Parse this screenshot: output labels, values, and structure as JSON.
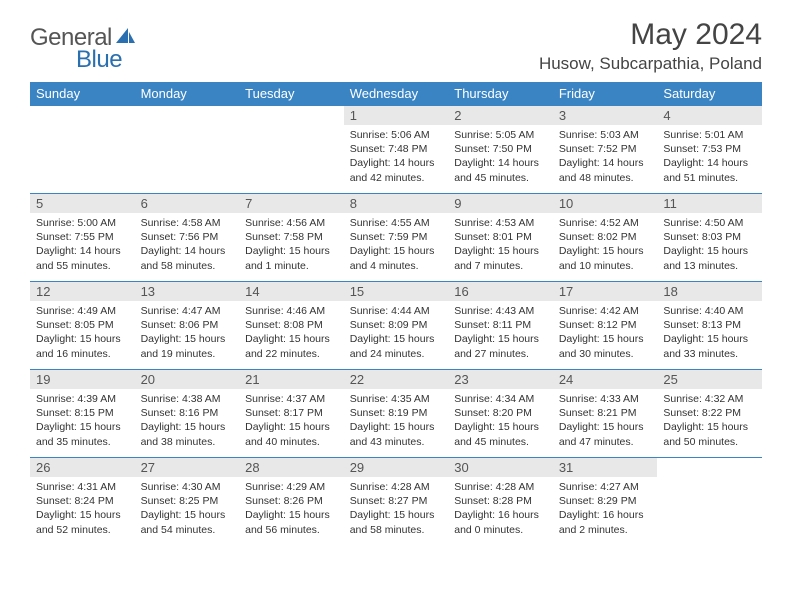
{
  "logo": {
    "part1": "General",
    "part2": "Blue"
  },
  "title": "May 2024",
  "location": "Husow, Subcarpathia, Poland",
  "colors": {
    "header_bg": "#3a84c4",
    "header_fg": "#ffffff",
    "daynum_bg": "#e8e8e8",
    "border": "#3a84c4",
    "logo_gray": "#555555",
    "logo_blue": "#2a6fb0"
  },
  "day_headers": [
    "Sunday",
    "Monday",
    "Tuesday",
    "Wednesday",
    "Thursday",
    "Friday",
    "Saturday"
  ],
  "weeks": [
    [
      {
        "empty": true
      },
      {
        "empty": true
      },
      {
        "empty": true
      },
      {
        "n": "1",
        "sr": "5:06 AM",
        "ss": "7:48 PM",
        "dl": "14 hours and 42 minutes."
      },
      {
        "n": "2",
        "sr": "5:05 AM",
        "ss": "7:50 PM",
        "dl": "14 hours and 45 minutes."
      },
      {
        "n": "3",
        "sr": "5:03 AM",
        "ss": "7:52 PM",
        "dl": "14 hours and 48 minutes."
      },
      {
        "n": "4",
        "sr": "5:01 AM",
        "ss": "7:53 PM",
        "dl": "14 hours and 51 minutes."
      }
    ],
    [
      {
        "n": "5",
        "sr": "5:00 AM",
        "ss": "7:55 PM",
        "dl": "14 hours and 55 minutes."
      },
      {
        "n": "6",
        "sr": "4:58 AM",
        "ss": "7:56 PM",
        "dl": "14 hours and 58 minutes."
      },
      {
        "n": "7",
        "sr": "4:56 AM",
        "ss": "7:58 PM",
        "dl": "15 hours and 1 minute."
      },
      {
        "n": "8",
        "sr": "4:55 AM",
        "ss": "7:59 PM",
        "dl": "15 hours and 4 minutes."
      },
      {
        "n": "9",
        "sr": "4:53 AM",
        "ss": "8:01 PM",
        "dl": "15 hours and 7 minutes."
      },
      {
        "n": "10",
        "sr": "4:52 AM",
        "ss": "8:02 PM",
        "dl": "15 hours and 10 minutes."
      },
      {
        "n": "11",
        "sr": "4:50 AM",
        "ss": "8:03 PM",
        "dl": "15 hours and 13 minutes."
      }
    ],
    [
      {
        "n": "12",
        "sr": "4:49 AM",
        "ss": "8:05 PM",
        "dl": "15 hours and 16 minutes."
      },
      {
        "n": "13",
        "sr": "4:47 AM",
        "ss": "8:06 PM",
        "dl": "15 hours and 19 minutes."
      },
      {
        "n": "14",
        "sr": "4:46 AM",
        "ss": "8:08 PM",
        "dl": "15 hours and 22 minutes."
      },
      {
        "n": "15",
        "sr": "4:44 AM",
        "ss": "8:09 PM",
        "dl": "15 hours and 24 minutes."
      },
      {
        "n": "16",
        "sr": "4:43 AM",
        "ss": "8:11 PM",
        "dl": "15 hours and 27 minutes."
      },
      {
        "n": "17",
        "sr": "4:42 AM",
        "ss": "8:12 PM",
        "dl": "15 hours and 30 minutes."
      },
      {
        "n": "18",
        "sr": "4:40 AM",
        "ss": "8:13 PM",
        "dl": "15 hours and 33 minutes."
      }
    ],
    [
      {
        "n": "19",
        "sr": "4:39 AM",
        "ss": "8:15 PM",
        "dl": "15 hours and 35 minutes."
      },
      {
        "n": "20",
        "sr": "4:38 AM",
        "ss": "8:16 PM",
        "dl": "15 hours and 38 minutes."
      },
      {
        "n": "21",
        "sr": "4:37 AM",
        "ss": "8:17 PM",
        "dl": "15 hours and 40 minutes."
      },
      {
        "n": "22",
        "sr": "4:35 AM",
        "ss": "8:19 PM",
        "dl": "15 hours and 43 minutes."
      },
      {
        "n": "23",
        "sr": "4:34 AM",
        "ss": "8:20 PM",
        "dl": "15 hours and 45 minutes."
      },
      {
        "n": "24",
        "sr": "4:33 AM",
        "ss": "8:21 PM",
        "dl": "15 hours and 47 minutes."
      },
      {
        "n": "25",
        "sr": "4:32 AM",
        "ss": "8:22 PM",
        "dl": "15 hours and 50 minutes."
      }
    ],
    [
      {
        "n": "26",
        "sr": "4:31 AM",
        "ss": "8:24 PM",
        "dl": "15 hours and 52 minutes."
      },
      {
        "n": "27",
        "sr": "4:30 AM",
        "ss": "8:25 PM",
        "dl": "15 hours and 54 minutes."
      },
      {
        "n": "28",
        "sr": "4:29 AM",
        "ss": "8:26 PM",
        "dl": "15 hours and 56 minutes."
      },
      {
        "n": "29",
        "sr": "4:28 AM",
        "ss": "8:27 PM",
        "dl": "15 hours and 58 minutes."
      },
      {
        "n": "30",
        "sr": "4:28 AM",
        "ss": "8:28 PM",
        "dl": "16 hours and 0 minutes."
      },
      {
        "n": "31",
        "sr": "4:27 AM",
        "ss": "8:29 PM",
        "dl": "16 hours and 2 minutes."
      },
      {
        "empty": true
      }
    ]
  ],
  "labels": {
    "sunrise": "Sunrise:",
    "sunset": "Sunset:",
    "daylight": "Daylight:"
  }
}
